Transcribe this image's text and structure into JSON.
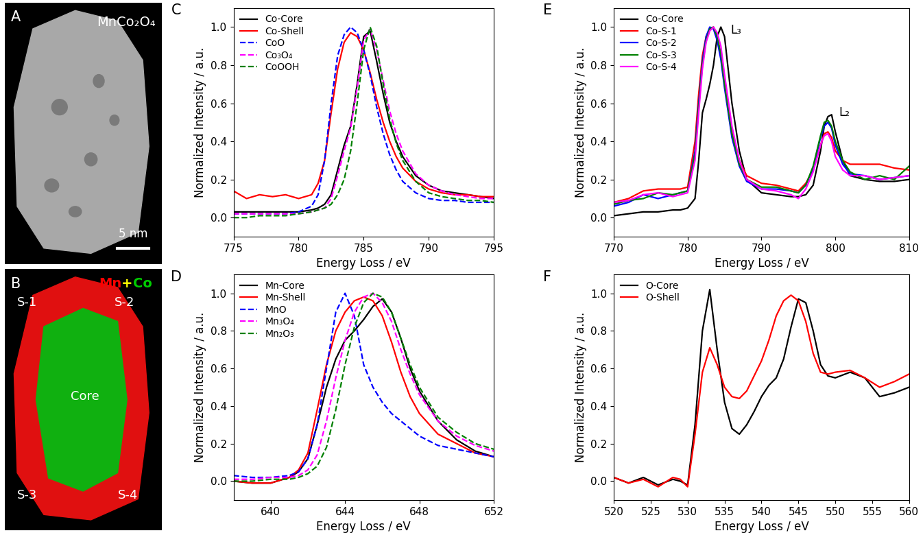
{
  "chart_data": [
    {
      "type": "image",
      "panel": "A",
      "title": "MnCo₂O₄",
      "scale_bar": "5 nm"
    },
    {
      "type": "image",
      "panel": "B",
      "legend_parts": [
        {
          "text": "Mn",
          "color": "#ff0000"
        },
        {
          "text": "+",
          "color": "#ffff00"
        },
        {
          "text": "Co",
          "color": "#00cc00"
        }
      ],
      "regions": [
        "S-1",
        "S-2",
        "Core",
        "S-3",
        "S-4"
      ]
    },
    {
      "type": "line",
      "panel": "C",
      "x_label": "Energy Loss / eV",
      "y_label": "Normalized Intensity / a.u.",
      "xlim": [
        775,
        795
      ],
      "xticks": [
        775,
        780,
        785,
        790,
        795
      ],
      "ylim": [
        -0.1,
        1.1
      ],
      "yticks": [
        {
          "value": 0.0,
          "label": "0.0"
        },
        {
          "value": 0.2,
          "label": "0.2"
        },
        {
          "value": 0.4,
          "label": "0.4"
        },
        {
          "value": 0.6,
          "label": "0.6"
        },
        {
          "value": 0.8,
          "label": "0.8"
        },
        {
          "value": 1.0,
          "label": "1.0"
        }
      ],
      "legend": "upper left",
      "x": [
        775,
        776,
        777,
        778,
        779,
        780,
        781,
        781.5,
        782,
        782.5,
        783,
        783.5,
        784,
        784.5,
        785,
        785.5,
        786,
        786.5,
        787,
        787.5,
        788,
        789,
        790,
        791,
        792,
        793,
        794,
        795
      ],
      "series": [
        {
          "name": "Co-Core",
          "color": "#000000",
          "line_style": "solid",
          "values": [
            0.03,
            0.03,
            0.03,
            0.03,
            0.03,
            0.03,
            0.04,
            0.05,
            0.07,
            0.12,
            0.25,
            0.38,
            0.48,
            0.7,
            0.95,
            0.98,
            0.82,
            0.65,
            0.5,
            0.4,
            0.32,
            0.22,
            0.17,
            0.14,
            0.13,
            0.12,
            0.11,
            0.1
          ]
        },
        {
          "name": "Co-Shell",
          "color": "#ff0000",
          "line_style": "solid",
          "values": [
            0.14,
            0.1,
            0.12,
            0.11,
            0.12,
            0.1,
            0.12,
            0.18,
            0.3,
            0.55,
            0.78,
            0.92,
            0.97,
            0.95,
            0.88,
            0.76,
            0.62,
            0.5,
            0.4,
            0.32,
            0.26,
            0.19,
            0.15,
            0.13,
            0.12,
            0.12,
            0.11,
            0.11
          ]
        },
        {
          "name": "CoO",
          "color": "#0000ff",
          "line_style": "dashed",
          "values": [
            0.02,
            0.02,
            0.02,
            0.02,
            0.02,
            0.03,
            0.06,
            0.12,
            0.3,
            0.6,
            0.85,
            0.96,
            1.0,
            0.97,
            0.88,
            0.75,
            0.58,
            0.44,
            0.33,
            0.25,
            0.19,
            0.13,
            0.1,
            0.09,
            0.09,
            0.08,
            0.08,
            0.08
          ]
        },
        {
          "name": "Co₃O₄",
          "color": "#ff00ff",
          "line_style": "dashed",
          "values": [
            0.02,
            0.02,
            0.02,
            0.02,
            0.02,
            0.02,
            0.03,
            0.04,
            0.05,
            0.1,
            0.22,
            0.35,
            0.47,
            0.68,
            0.93,
            0.99,
            0.88,
            0.72,
            0.56,
            0.44,
            0.35,
            0.23,
            0.17,
            0.14,
            0.12,
            0.11,
            0.1,
            0.1
          ]
        },
        {
          "name": "CoOOH",
          "color": "#008000",
          "line_style": "dashed",
          "values": [
            0.0,
            0.0,
            0.01,
            0.01,
            0.01,
            0.02,
            0.03,
            0.04,
            0.05,
            0.07,
            0.12,
            0.2,
            0.35,
            0.6,
            0.88,
            1.0,
            0.9,
            0.7,
            0.52,
            0.39,
            0.3,
            0.19,
            0.13,
            0.11,
            0.1,
            0.09,
            0.09,
            0.08
          ]
        }
      ]
    },
    {
      "type": "line",
      "panel": "D",
      "x_label": "Energy Loss / eV",
      "y_label": "Normalized Intensity / a.u.",
      "xlim": [
        638,
        652
      ],
      "xticks": [
        640,
        644,
        648,
        652
      ],
      "ylim": [
        -0.1,
        1.1
      ],
      "yticks": [
        {
          "value": 0.0,
          "label": "0.0"
        },
        {
          "value": 0.2,
          "label": "0.2"
        },
        {
          "value": 0.4,
          "label": "0.4"
        },
        {
          "value": 0.6,
          "label": "0.6"
        },
        {
          "value": 0.8,
          "label": "0.8"
        },
        {
          "value": 1.0,
          "label": "1.0"
        }
      ],
      "legend": "upper left",
      "x": [
        638,
        639,
        640,
        641,
        641.5,
        642,
        642.5,
        643,
        643.5,
        644,
        644.5,
        645,
        645.5,
        646,
        646.5,
        647,
        647.5,
        648,
        649,
        650,
        651,
        652
      ],
      "series": [
        {
          "name": "Mn-Core",
          "color": "#000000",
          "line_style": "solid",
          "values": [
            0.0,
            -0.01,
            -0.01,
            0.02,
            0.05,
            0.12,
            0.3,
            0.5,
            0.65,
            0.75,
            0.8,
            0.86,
            0.93,
            0.97,
            0.9,
            0.76,
            0.6,
            0.48,
            0.32,
            0.22,
            0.16,
            0.13
          ]
        },
        {
          "name": "Mn-Shell",
          "color": "#ff0000",
          "line_style": "solid",
          "values": [
            0.0,
            -0.01,
            -0.01,
            0.02,
            0.06,
            0.15,
            0.38,
            0.62,
            0.8,
            0.9,
            0.96,
            0.98,
            0.96,
            0.88,
            0.74,
            0.58,
            0.45,
            0.36,
            0.25,
            0.2,
            0.15,
            0.13
          ]
        },
        {
          "name": "MnO",
          "color": "#0000ff",
          "line_style": "dashed",
          "values": [
            0.03,
            0.02,
            0.02,
            0.03,
            0.05,
            0.12,
            0.3,
            0.6,
            0.9,
            1.0,
            0.88,
            0.62,
            0.5,
            0.42,
            0.36,
            0.32,
            0.28,
            0.24,
            0.19,
            0.17,
            0.15,
            0.13
          ]
        },
        {
          "name": "Mn₃O₄",
          "color": "#ff00ff",
          "line_style": "dashed",
          "values": [
            0.01,
            0.01,
            0.02,
            0.02,
            0.03,
            0.06,
            0.14,
            0.32,
            0.55,
            0.75,
            0.9,
            0.98,
            1.0,
            0.95,
            0.85,
            0.7,
            0.57,
            0.46,
            0.32,
            0.24,
            0.19,
            0.16
          ]
        },
        {
          "name": "Mn₂O₃",
          "color": "#008000",
          "line_style": "dashed",
          "values": [
            0.0,
            0.0,
            0.01,
            0.01,
            0.02,
            0.04,
            0.08,
            0.18,
            0.38,
            0.62,
            0.82,
            0.95,
            1.0,
            0.98,
            0.9,
            0.76,
            0.62,
            0.5,
            0.34,
            0.26,
            0.2,
            0.17
          ]
        }
      ]
    },
    {
      "type": "line",
      "panel": "E",
      "x_label": "Energy Loss / eV",
      "y_label": "Normalized Intensity / a.u.",
      "xlim": [
        770,
        810
      ],
      "xticks": [
        770,
        780,
        790,
        800,
        810
      ],
      "ylim": [
        -0.1,
        1.1
      ],
      "yticks": [
        {
          "value": 0.0,
          "label": "0.0"
        },
        {
          "value": 0.2,
          "label": "0.2"
        },
        {
          "value": 0.4,
          "label": "0.4"
        },
        {
          "value": 0.6,
          "label": "0.6"
        },
        {
          "value": 0.8,
          "label": "0.8"
        },
        {
          "value": 1.0,
          "label": "1.0"
        }
      ],
      "legend": "upper left",
      "annotations": [
        {
          "text": "L₃",
          "x": 785.8,
          "y": 0.95
        },
        {
          "text": "L₂",
          "x": 800.5,
          "y": 0.52
        }
      ],
      "x": [
        770,
        772,
        774,
        776,
        778,
        779,
        780,
        781,
        781.5,
        782,
        782.5,
        783,
        783.5,
        784,
        784.5,
        785,
        786,
        787,
        788,
        790,
        792,
        794,
        795,
        796,
        797,
        798,
        798.5,
        799,
        799.5,
        800,
        801,
        802,
        804,
        806,
        808,
        810
      ],
      "series": [
        {
          "name": "Co-Core",
          "color": "#000000",
          "line_style": "solid",
          "values": [
            0.01,
            0.02,
            0.03,
            0.03,
            0.04,
            0.04,
            0.05,
            0.1,
            0.3,
            0.55,
            0.62,
            0.7,
            0.8,
            0.95,
            1.0,
            0.95,
            0.6,
            0.35,
            0.2,
            0.13,
            0.12,
            0.11,
            0.11,
            0.12,
            0.17,
            0.35,
            0.48,
            0.53,
            0.54,
            0.45,
            0.3,
            0.22,
            0.2,
            0.19,
            0.19,
            0.2
          ]
        },
        {
          "name": "Co-S-1",
          "color": "#ff0000",
          "line_style": "solid",
          "values": [
            0.08,
            0.1,
            0.14,
            0.15,
            0.15,
            0.15,
            0.16,
            0.4,
            0.65,
            0.85,
            0.95,
            0.99,
            1.0,
            0.95,
            0.85,
            0.7,
            0.45,
            0.3,
            0.22,
            0.18,
            0.17,
            0.15,
            0.14,
            0.18,
            0.25,
            0.38,
            0.44,
            0.45,
            0.42,
            0.35,
            0.3,
            0.28,
            0.28,
            0.28,
            0.26,
            0.25
          ]
        },
        {
          "name": "Co-S-2",
          "color": "#0000ff",
          "line_style": "solid",
          "values": [
            0.06,
            0.08,
            0.12,
            0.1,
            0.12,
            0.13,
            0.14,
            0.35,
            0.6,
            0.82,
            0.95,
            1.0,
            0.99,
            0.93,
            0.83,
            0.68,
            0.42,
            0.27,
            0.19,
            0.15,
            0.15,
            0.14,
            0.13,
            0.17,
            0.26,
            0.42,
            0.48,
            0.5,
            0.47,
            0.38,
            0.28,
            0.23,
            0.22,
            0.2,
            0.21,
            0.22
          ]
        },
        {
          "name": "Co-S-3",
          "color": "#008000",
          "line_style": "solid",
          "values": [
            0.07,
            0.09,
            0.1,
            0.13,
            0.12,
            0.13,
            0.14,
            0.33,
            0.58,
            0.8,
            0.93,
            0.99,
            1.0,
            0.95,
            0.86,
            0.7,
            0.44,
            0.28,
            0.2,
            0.16,
            0.16,
            0.14,
            0.13,
            0.17,
            0.27,
            0.43,
            0.5,
            0.51,
            0.48,
            0.4,
            0.3,
            0.24,
            0.2,
            0.22,
            0.2,
            0.27
          ]
        },
        {
          "name": "Co-S-4",
          "color": "#ff00ff",
          "line_style": "solid",
          "values": [
            0.08,
            0.09,
            0.12,
            0.13,
            0.11,
            0.12,
            0.13,
            0.3,
            0.55,
            0.78,
            0.92,
            0.98,
            1.0,
            0.97,
            0.9,
            0.75,
            0.48,
            0.3,
            0.2,
            0.15,
            0.14,
            0.12,
            0.1,
            0.15,
            0.24,
            0.38,
            0.43,
            0.44,
            0.4,
            0.32,
            0.25,
            0.22,
            0.22,
            0.2,
            0.21,
            0.22
          ]
        }
      ]
    },
    {
      "type": "line",
      "panel": "F",
      "x_label": "Energy Loss / eV",
      "y_label": "Normalized Intensity / a.u.",
      "xlim": [
        520,
        560
      ],
      "xticks": [
        520,
        525,
        530,
        535,
        540,
        545,
        550,
        555,
        560
      ],
      "ylim": [
        -0.1,
        1.1
      ],
      "yticks": [
        {
          "value": 0.0,
          "label": "0.0"
        },
        {
          "value": 0.2,
          "label": "0.2"
        },
        {
          "value": 0.4,
          "label": "0.4"
        },
        {
          "value": 0.6,
          "label": "0.6"
        },
        {
          "value": 0.8,
          "label": "0.8"
        },
        {
          "value": 1.0,
          "label": "1.0"
        }
      ],
      "legend": "upper left",
      "x": [
        520,
        522,
        524,
        526,
        528,
        529,
        530,
        531,
        532,
        533,
        534,
        535,
        536,
        537,
        538,
        539,
        540,
        541,
        542,
        543,
        544,
        545,
        546,
        547,
        548,
        549,
        550,
        552,
        554,
        556,
        558,
        560
      ],
      "series": [
        {
          "name": "O-Core",
          "color": "#000000",
          "line_style": "solid",
          "values": [
            0.02,
            -0.01,
            0.02,
            -0.02,
            0.01,
            0.0,
            -0.02,
            0.3,
            0.8,
            1.02,
            0.7,
            0.42,
            0.28,
            0.25,
            0.3,
            0.37,
            0.45,
            0.51,
            0.55,
            0.65,
            0.82,
            0.97,
            0.95,
            0.8,
            0.62,
            0.56,
            0.55,
            0.58,
            0.55,
            0.45,
            0.47,
            0.5
          ]
        },
        {
          "name": "O-Shell",
          "color": "#ff0000",
          "line_style": "solid",
          "values": [
            0.02,
            -0.01,
            0.01,
            -0.03,
            0.02,
            0.01,
            -0.03,
            0.25,
            0.58,
            0.71,
            0.62,
            0.5,
            0.45,
            0.44,
            0.48,
            0.56,
            0.64,
            0.75,
            0.88,
            0.96,
            0.99,
            0.96,
            0.85,
            0.68,
            0.58,
            0.57,
            0.58,
            0.59,
            0.55,
            0.5,
            0.53,
            0.57
          ]
        }
      ]
    }
  ]
}
